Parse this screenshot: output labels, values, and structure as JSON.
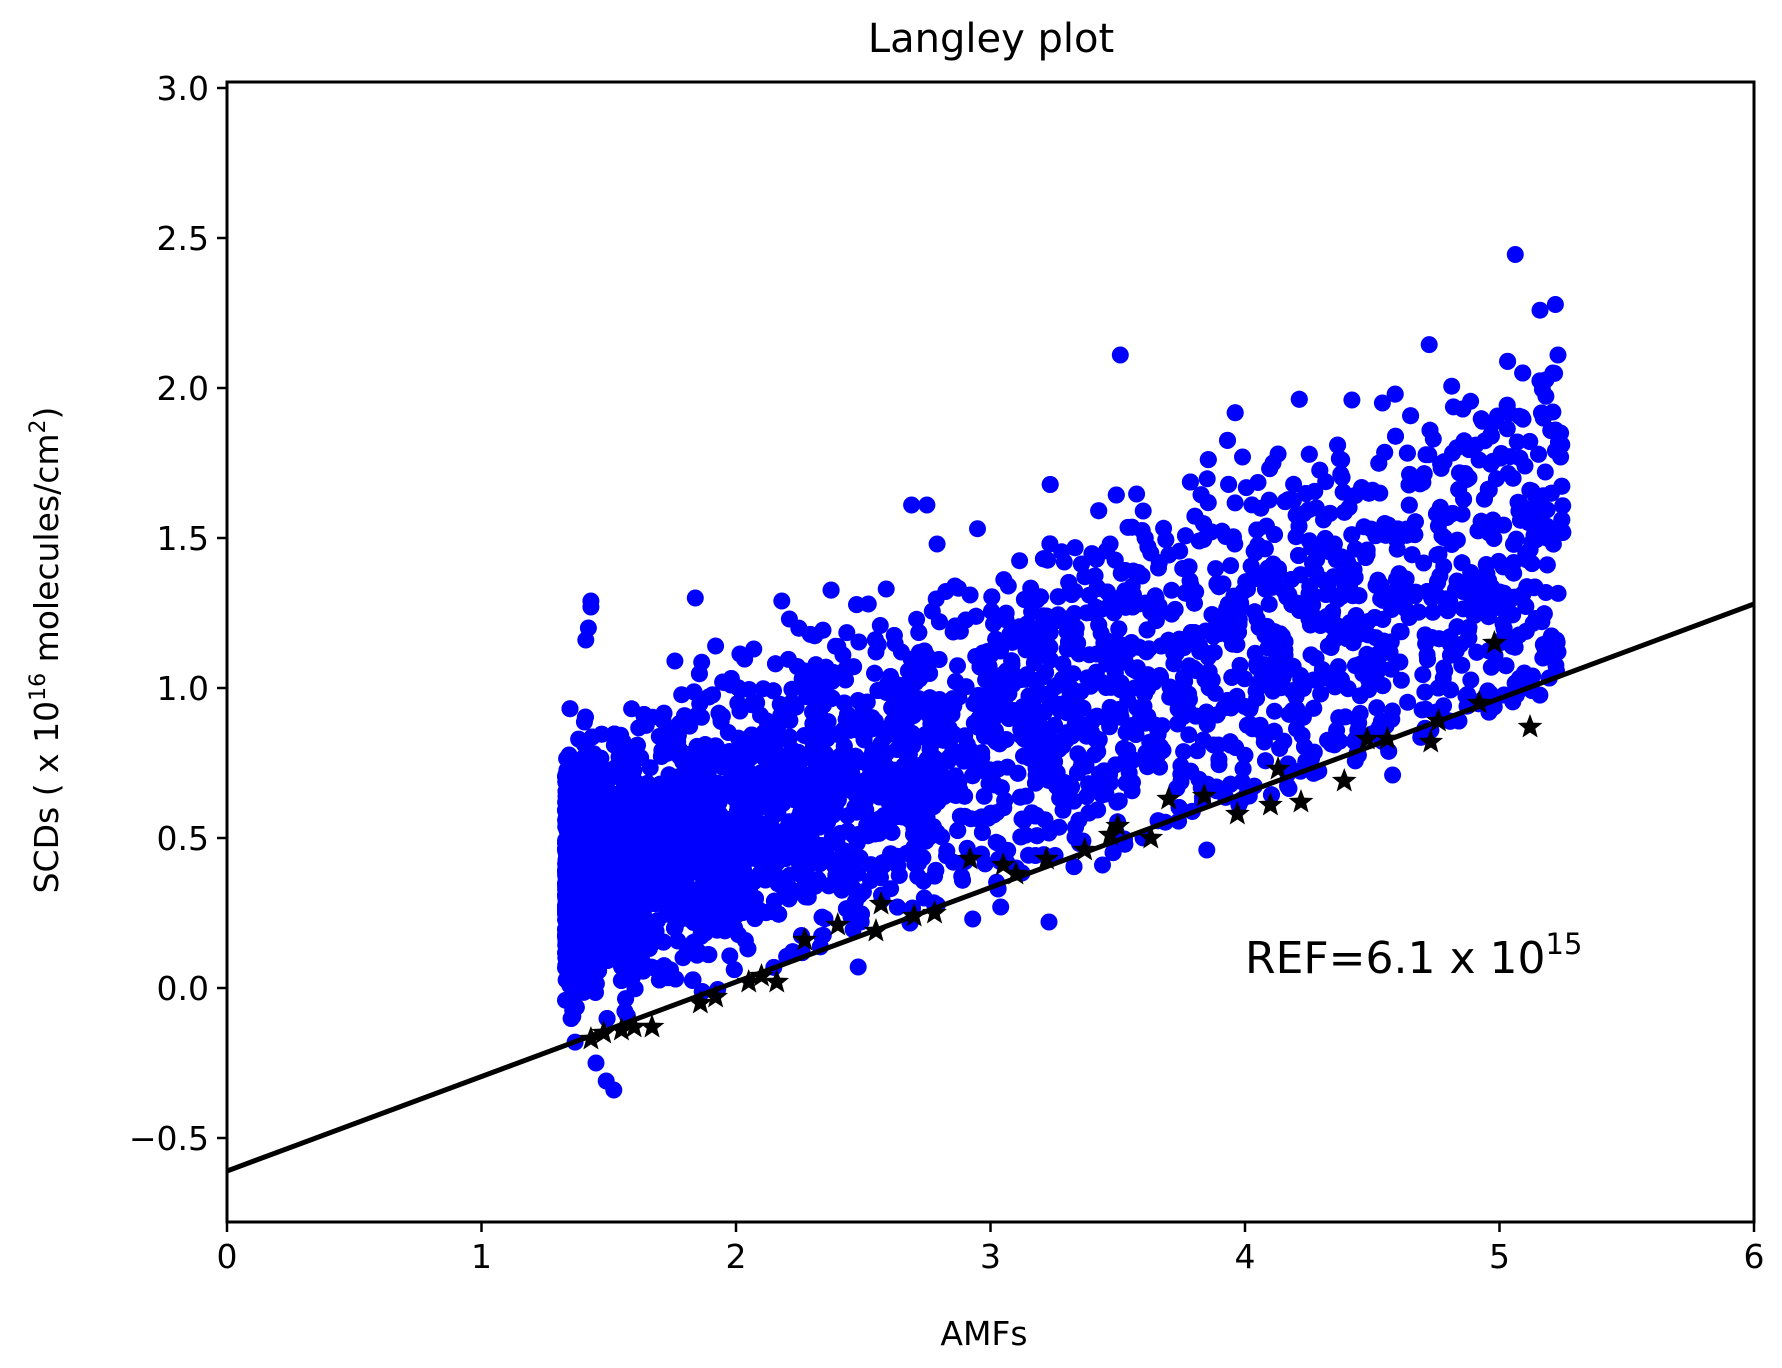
{
  "chart_data": {
    "type": "scatter",
    "title": "Langley plot",
    "xlabel": "AMFs",
    "ylabel": {
      "prefix": "SCDs ( x 10",
      "exp": "16",
      "mid": " molecules/cm",
      "exp2": "2",
      "suffix": ")"
    },
    "xlim": [
      0,
      6
    ],
    "ylim": [
      -0.78,
      3.02
    ],
    "xticks": [
      0,
      1,
      2,
      3,
      4,
      5,
      6
    ],
    "xtick_labels": [
      "0",
      "1",
      "2",
      "3",
      "4",
      "5",
      "6"
    ],
    "yticks": [
      -0.5,
      0.0,
      0.5,
      1.0,
      1.5,
      2.0,
      2.5,
      3.0
    ],
    "ytick_labels": [
      "−0.5",
      "0.0",
      "0.5",
      "1.0",
      "1.5",
      "2.0",
      "2.5",
      "3.0"
    ],
    "grid": false,
    "annotation": {
      "base": "REF=6.1 x 10",
      "exp": "15",
      "x": 4.0,
      "y": 0.05
    },
    "colors": {
      "scatter": "#0000ff",
      "stars": "#000000",
      "fit": "#000000"
    },
    "fit_line": {
      "name": "fit",
      "x": [
        0,
        6
      ],
      "y": [
        -0.61,
        1.28
      ]
    },
    "stars": [
      [
        1.43,
        -0.17
      ],
      [
        1.48,
        -0.15
      ],
      [
        1.55,
        -0.14
      ],
      [
        1.6,
        -0.13
      ],
      [
        1.67,
        -0.13
      ],
      [
        1.86,
        -0.05
      ],
      [
        1.92,
        -0.03
      ],
      [
        2.05,
        0.02
      ],
      [
        2.1,
        0.04
      ],
      [
        2.16,
        0.02
      ],
      [
        2.27,
        0.16
      ],
      [
        2.4,
        0.21
      ],
      [
        2.57,
        0.28
      ],
      [
        2.55,
        0.19
      ],
      [
        2.7,
        0.24
      ],
      [
        2.78,
        0.25
      ],
      [
        2.92,
        0.43
      ],
      [
        3.05,
        0.41
      ],
      [
        3.1,
        0.38
      ],
      [
        3.22,
        0.43
      ],
      [
        3.37,
        0.46
      ],
      [
        3.47,
        0.51
      ],
      [
        3.5,
        0.54
      ],
      [
        3.63,
        0.5
      ],
      [
        3.7,
        0.63
      ],
      [
        3.84,
        0.64
      ],
      [
        3.97,
        0.58
      ],
      [
        4.1,
        0.61
      ],
      [
        4.13,
        0.73
      ],
      [
        4.22,
        0.62
      ],
      [
        4.39,
        0.69
      ],
      [
        4.48,
        0.83
      ],
      [
        4.56,
        0.83
      ],
      [
        4.73,
        0.82
      ],
      [
        4.76,
        0.89
      ],
      [
        4.92,
        0.95
      ],
      [
        4.98,
        1.15
      ],
      [
        5.12,
        0.87
      ]
    ],
    "scatter_outliers": [
      [
        3.51,
        2.11
      ],
      [
        5.23,
        2.11
      ],
      [
        5.21,
        2.05
      ],
      [
        4.42,
        1.96
      ],
      [
        4.54,
        1.95
      ],
      [
        5.21,
        1.92
      ],
      [
        4.97,
        1.88
      ],
      [
        5.22,
        1.86
      ],
      [
        5.24,
        1.85
      ],
      [
        4.74,
        1.83
      ],
      [
        5.07,
        1.82
      ],
      [
        4.13,
        1.78
      ],
      [
        5.24,
        1.77
      ],
      [
        3.99,
        1.77
      ],
      [
        4.11,
        1.75
      ],
      [
        4.38,
        1.76
      ],
      [
        4.92,
        1.76
      ],
      [
        4.88,
        1.7
      ],
      [
        5.18,
        1.72
      ],
      [
        2.69,
        1.61
      ],
      [
        2.75,
        1.61
      ],
      [
        3.6,
        1.59
      ],
      [
        2.79,
        1.48
      ],
      [
        3.47,
        1.48
      ],
      [
        5.23,
        1.53
      ],
      [
        1.43,
        1.29
      ],
      [
        1.43,
        1.27
      ],
      [
        1.84,
        1.3
      ],
      [
        2.18,
        1.29
      ],
      [
        2.21,
        1.23
      ],
      [
        2.59,
        1.33
      ],
      [
        2.52,
        1.28
      ],
      [
        2.86,
        1.34
      ],
      [
        3.07,
        1.34
      ],
      [
        2.92,
        1.31
      ],
      [
        1.76,
        1.09
      ],
      [
        2.42,
        1.11
      ],
      [
        2.55,
        1.12
      ],
      [
        1.92,
        1.14
      ],
      [
        2.07,
        1.13
      ],
      [
        2.65,
        1.12
      ],
      [
        1.42,
        1.2
      ],
      [
        1.41,
        1.16
      ],
      [
        1.98,
        1.01
      ],
      [
        5.17,
        1.1
      ],
      [
        5.23,
        1.12
      ],
      [
        5.09,
        1.0
      ],
      [
        4.58,
        0.71
      ],
      [
        5.13,
        1.04
      ],
      [
        3.23,
        0.22
      ],
      [
        3.04,
        0.27
      ],
      [
        2.74,
        0.3
      ],
      [
        2.93,
        0.23
      ],
      [
        2.48,
        0.07
      ],
      [
        1.52,
        -0.34
      ],
      [
        1.49,
        -0.31
      ],
      [
        1.45,
        -0.25
      ],
      [
        3.85,
        0.46
      ],
      [
        3.44,
        0.41
      ],
      [
        4.48,
        1.46
      ],
      [
        3.82,
        1.49
      ],
      [
        3.66,
        1.4
      ],
      [
        3.63,
        1.45
      ],
      [
        3.29,
        1.42
      ],
      [
        3.22,
        1.24
      ],
      [
        4.76,
        1.54
      ],
      [
        4.96,
        1.66
      ],
      [
        5.1,
        1.74
      ],
      [
        3.96,
        1.48
      ],
      [
        4.04,
        1.45
      ]
    ],
    "scatter_cloud": {
      "n_points": 5200,
      "x_range": [
        1.33,
        5.25
      ],
      "center_line": {
        "slope": 0.29,
        "intercept": -0.24
      },
      "spread": 0.27
    }
  }
}
